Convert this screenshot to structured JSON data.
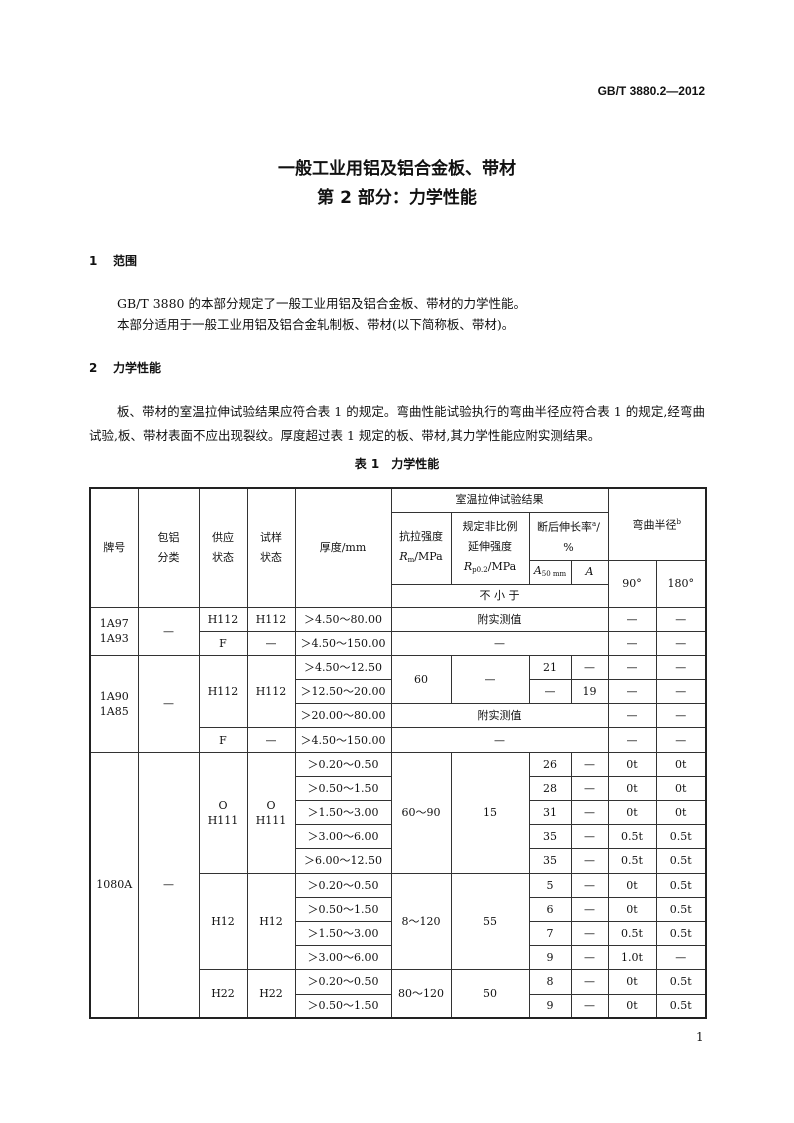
{
  "header": {
    "standard_no": "GB/T 3880.2—2012"
  },
  "title": {
    "line1": "一般工业用铝及铝合金板、带材",
    "line2": "第 2 部分：力学性能"
  },
  "sections": [
    {
      "number": "1",
      "heading": "范围",
      "paragraphs": [
        "GB/T 3880 的本部分规定了一般工业用铝及铝合金板、带材的力学性能。",
        "本部分适用于一般工业用铝及铝合金轧制板、带材(以下简称板、带材)。"
      ]
    },
    {
      "number": "2",
      "heading": "力学性能",
      "paragraphs": [
        "板、带材的室温拉伸试验结果应符合表 1 的规定。弯曲性能试验执行的弯曲半径应符合表 1 的规定,经弯曲试验,板、带材表面不应出现裂纹。厚度超过表 1 规定的板、带材,其力学性能应附实测结果。"
      ]
    }
  ],
  "table": {
    "caption": "表 1　力学性能",
    "headers": {
      "grade": "牌号",
      "cladding": "包铝\n分类",
      "supply_temper": "供应\n状态",
      "specimen_temper": "试样\n状态",
      "thickness": "厚度/mm",
      "tensile_group": "室温拉伸试验结果",
      "bend_group": "弯曲半径",
      "bend_sup": "b",
      "rm": "抗拉强度",
      "rm_sym": "R",
      "rm_sub": "m",
      "rm_unit": "/MPa",
      "rp": "规定非比例\n延伸强度",
      "rp_sym": "R",
      "rp_sub": "p0.2",
      "rp_unit": "/MPa",
      "elong": "断后伸长率",
      "elong_sup": "a",
      "elong_unit": "/\n%",
      "a50": "A",
      "a50_sub": "50 mm",
      "a": "A",
      "deg90": "90°",
      "deg180": "180°",
      "min": "不 小 于"
    },
    "rows": [
      [
        "1A97\n1A93",
        "—",
        "H112",
        "H112",
        "＞4.50～80.00",
        "附实测值",
        "—",
        "—"
      ],
      [
        "F",
        "—",
        "＞4.50～150.00",
        "—",
        "—",
        "—"
      ],
      [
        "1A90\n1A85",
        "—",
        "H112",
        "H112",
        "＞4.50～12.50",
        "60",
        "—",
        "21",
        "—",
        "—",
        "—"
      ],
      [
        "＞12.50～20.00",
        "—",
        "19",
        "—",
        "—"
      ],
      [
        "＞20.00～80.00",
        "附实测值",
        "—",
        "—"
      ],
      [
        "F",
        "—",
        "＞4.50～150.00",
        "—",
        "—",
        "—"
      ],
      [
        "1080A",
        "—",
        "O\nH111",
        "O\nH111",
        "＞0.20～0.50",
        "60～90",
        "15",
        "26",
        "—",
        "0t",
        "0t"
      ],
      [
        "＞0.50～1.50",
        "28",
        "—",
        "0t",
        "0t"
      ],
      [
        "＞1.50～3.00",
        "31",
        "—",
        "0t",
        "0t"
      ],
      [
        "＞3.00～6.00",
        "35",
        "—",
        "0.5t",
        "0.5t"
      ],
      [
        "＞6.00～12.50",
        "35",
        "—",
        "0.5t",
        "0.5t"
      ],
      [
        "H12",
        "H12",
        "＞0.20～0.50",
        "8～120",
        "55",
        "5",
        "—",
        "0t",
        "0.5t"
      ],
      [
        "＞0.50～1.50",
        "6",
        "—",
        "0t",
        "0.5t"
      ],
      [
        "＞1.50～3.00",
        "7",
        "—",
        "0.5t",
        "0.5t"
      ],
      [
        "＞3.00～6.00",
        "9",
        "—",
        "1.0t",
        "—"
      ],
      [
        "H22",
        "H22",
        "＞0.20～0.50",
        "80～120",
        "50",
        "8",
        "—",
        "0t",
        "0.5t"
      ],
      [
        "＞0.50～1.50",
        "9",
        "—",
        "0t",
        "0.5t"
      ]
    ]
  },
  "page_number": "1"
}
